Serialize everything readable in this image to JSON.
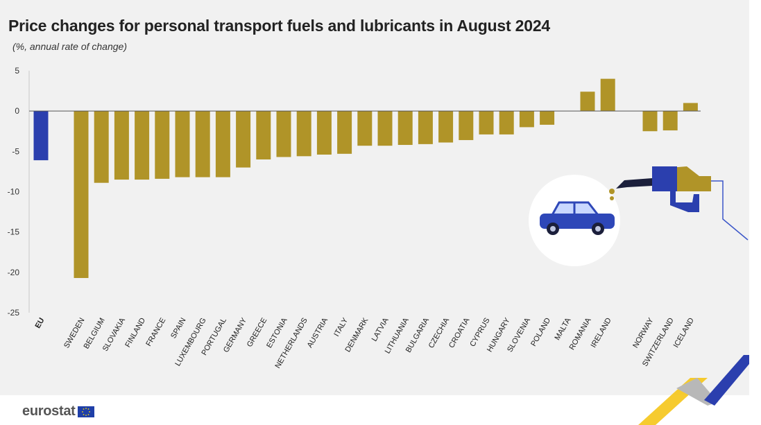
{
  "header": {
    "title": "Price changes for personal transport fuels and lubricants in August 2024",
    "subtitle": "(%, annual rate of change)"
  },
  "brand": {
    "logo_text": "eurostat"
  },
  "colors": {
    "eu_bar": "#2b3fae",
    "country_bar": "#b09428",
    "panel_bg": "#f1f1f1",
    "car": "#2e47b8"
  },
  "icons": [
    "car-icon",
    "fuel-nozzle-icon",
    "eu-flag-icon"
  ],
  "chart_data": {
    "type": "bar",
    "title": "Price changes for personal transport fuels and lubricants in August 2024",
    "subtitle": "(%, annual rate of change)",
    "xlabel": "",
    "ylabel": "",
    "ylim": [
      -25,
      5
    ],
    "yticks": [
      5,
      0,
      -5,
      -10,
      -15,
      -20,
      -25
    ],
    "grid": false,
    "categories": [
      "EU",
      "SWEDEN",
      "BELGIUM",
      "SLOVAKIA",
      "FINLAND",
      "FRANCE",
      "SPAIN",
      "LUXEMBOURG",
      "PORTUGAL",
      "GERMANY",
      "GREECE",
      "ESTONIA",
      "NETHERLANDS",
      "AUSTRIA",
      "ITALY",
      "DENMARK",
      "LATVIA",
      "LITHUANIA",
      "BULGARIA",
      "CZECHIA",
      "CROATIA",
      "CYPRUS",
      "HUNGARY",
      "SLOVENIA",
      "POLAND",
      "MALTA",
      "ROMANIA",
      "IRELAND",
      "NORWAY",
      "SWITZERLAND",
      "ICELAND"
    ],
    "values": [
      -6.1,
      -20.7,
      -8.9,
      -8.5,
      -8.5,
      -8.4,
      -8.2,
      -8.2,
      -8.2,
      -7.0,
      -6.0,
      -5.7,
      -5.6,
      -5.4,
      -5.3,
      -4.3,
      -4.3,
      -4.2,
      -4.1,
      -3.9,
      -3.6,
      -2.9,
      -2.9,
      -2.0,
      -1.7,
      0.0,
      2.4,
      4.0,
      -2.5,
      -2.4,
      1.0
    ]
  }
}
